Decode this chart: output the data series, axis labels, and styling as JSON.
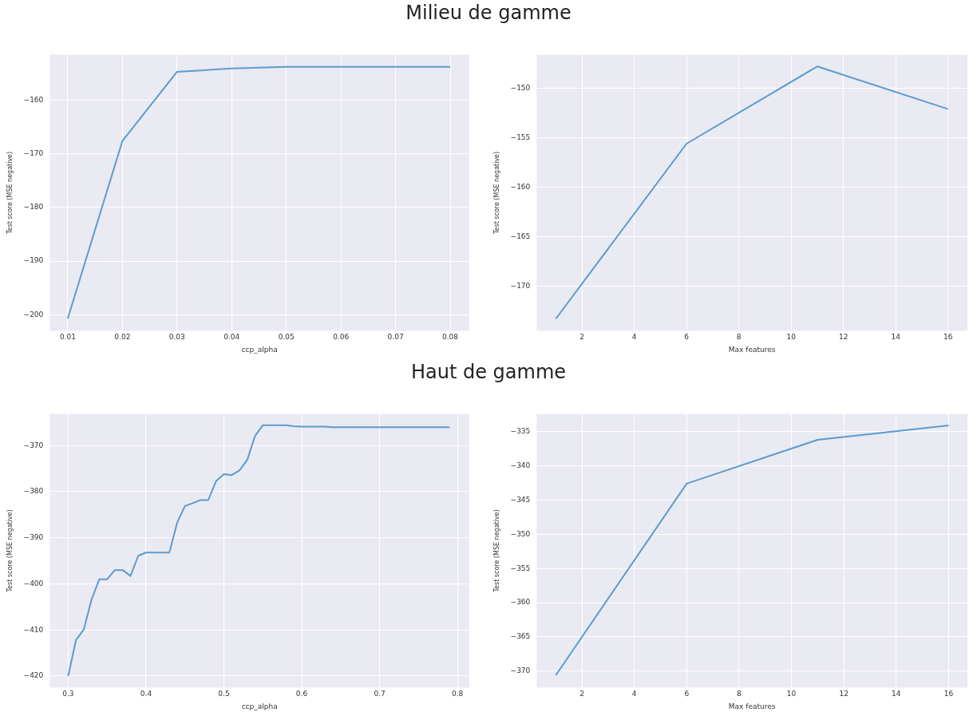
{
  "chart_data": [
    {
      "type": "line",
      "title": "Milieu de gamme",
      "xlabel": "ccp_alpha",
      "ylabel": "Test score (MSE negative)",
      "grid": true,
      "x": [
        0.01,
        0.02,
        0.03,
        0.04,
        0.05,
        0.06,
        0.07,
        0.08
      ],
      "series": [
        {
          "color": "#5b9bd0",
          "values": [
            -200.7,
            -167.6,
            -154.7,
            -154.1,
            -153.8,
            -153.8,
            -153.8,
            -153.8
          ]
        }
      ],
      "xlim": [
        0.0067,
        0.0835
      ],
      "xticks": [
        0.01,
        0.02,
        0.03,
        0.04,
        0.05,
        0.06,
        0.07,
        0.08
      ],
      "ylim": [
        -203,
        -151.5
      ],
      "yticks": [
        -200,
        -190,
        -180,
        -170,
        -160
      ]
    },
    {
      "type": "line",
      "xlabel": "Max features",
      "ylabel": "Test score (MSE negative)",
      "grid": true,
      "x": [
        1,
        6,
        11,
        16
      ],
      "series": [
        {
          "color": "#5b9bd0",
          "values": [
            -173.3,
            -155.6,
            -147.8,
            -152.1
          ]
        }
      ],
      "xlim": [
        0.27,
        16.74
      ],
      "xticks": [
        2,
        4,
        6,
        8,
        10,
        12,
        14,
        16
      ],
      "ylim": [
        -174.5,
        -146.6
      ],
      "yticks": [
        -170,
        -165,
        -160,
        -155,
        -150
      ]
    },
    {
      "type": "line",
      "title": "Haut de gamme",
      "xlabel": "ccp_alpha",
      "ylabel": "Test score (MSE negative)",
      "grid": true,
      "x": [
        0.3,
        0.31,
        0.32,
        0.33,
        0.34,
        0.35,
        0.36,
        0.37,
        0.38,
        0.39,
        0.4,
        0.41,
        0.42,
        0.43,
        0.44,
        0.45,
        0.46,
        0.47,
        0.48,
        0.49,
        0.5,
        0.51,
        0.52,
        0.53,
        0.54,
        0.55,
        0.56,
        0.57,
        0.58,
        0.59,
        0.6,
        0.61,
        0.62,
        0.63,
        0.64,
        0.65,
        0.66,
        0.67,
        0.68,
        0.69,
        0.7,
        0.71,
        0.72,
        0.73,
        0.74,
        0.75,
        0.76,
        0.77,
        0.78,
        0.79
      ],
      "series": [
        {
          "color": "#5b9bd0",
          "values": [
            -420,
            -412.2,
            -409.9,
            -403.4,
            -399,
            -399,
            -397,
            -397,
            -398.3,
            -393.9,
            -393.2,
            -393.2,
            -393.2,
            -393.2,
            -386.7,
            -383.1,
            -382.5,
            -381.8,
            -381.8,
            -377.7,
            -376.2,
            -376.4,
            -375.4,
            -373.1,
            -367.9,
            -365.6,
            -365.6,
            -365.6,
            -365.6,
            -365.8,
            -365.9,
            -365.9,
            -365.9,
            -365.9,
            -366,
            -366,
            -366,
            -366,
            -366,
            -366,
            -366,
            -366,
            -366,
            -366,
            -366,
            -366,
            -366,
            -366,
            -366,
            -366
          ]
        }
      ],
      "xlim": [
        0.2763,
        0.8153
      ],
      "xticks": [
        0.3,
        0.4,
        0.5,
        0.6,
        0.7,
        0.8
      ],
      "ylim": [
        -422.5,
        -363.1
      ],
      "yticks": [
        -420,
        -410,
        -400,
        -390,
        -380,
        -370
      ]
    },
    {
      "type": "line",
      "xlabel": "Max features",
      "ylabel": "Test score (MSE negative)",
      "grid": true,
      "x": [
        1,
        6,
        11,
        16
      ],
      "series": [
        {
          "color": "#5b9bd0",
          "values": [
            -370.6,
            -342.6,
            -336.2,
            -334.1
          ]
        }
      ],
      "xlim": [
        0.27,
        16.72
      ],
      "xticks": [
        2,
        4,
        6,
        8,
        10,
        12,
        14,
        16
      ],
      "ylim": [
        -372.4,
        -332.4
      ],
      "yticks": [
        -370,
        -365,
        -360,
        -355,
        -350,
        -345,
        -340,
        -335
      ]
    }
  ]
}
